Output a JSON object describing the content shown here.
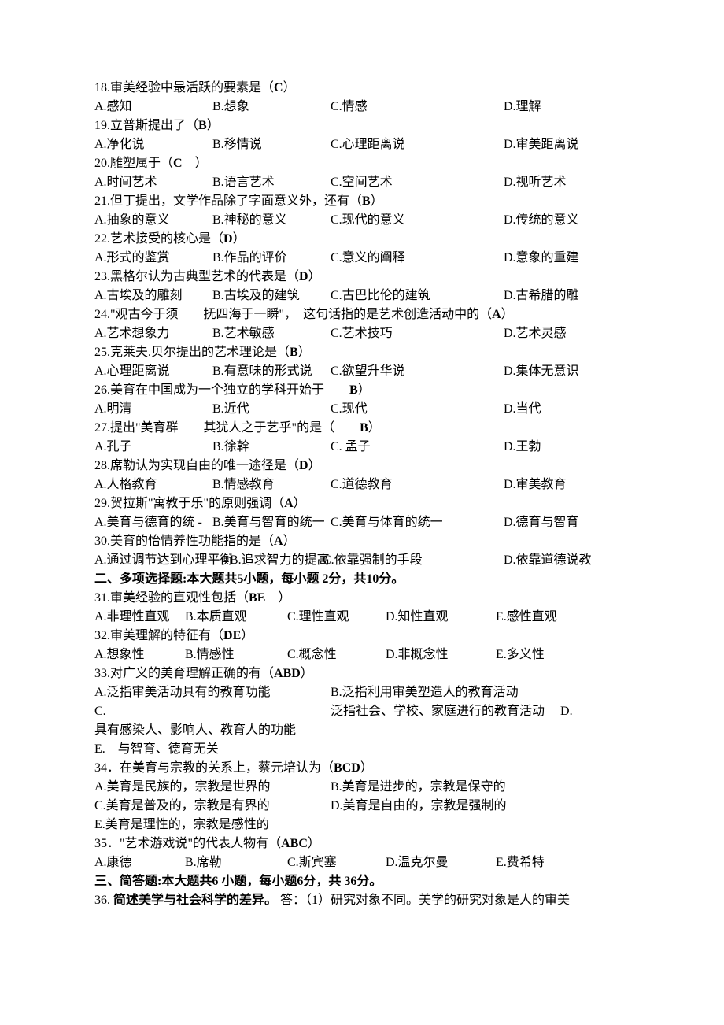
{
  "sc_questions": [
    {
      "num": "18",
      "stem": "审美经验中最活跃的要素是（",
      "ans": "C",
      "post": "）",
      "opts": [
        "A.感知",
        "B.想象",
        "C.情感",
        "D.理解"
      ],
      "cols": [
        0,
        150,
        300,
        520
      ]
    },
    {
      "num": "19",
      "stem": "立普斯提出了（",
      "ans": "B",
      "post": "）",
      "opts": [
        "A.净化说",
        "B.移情说",
        "C.心理距离说",
        "D.审美距离说"
      ],
      "cols": [
        0,
        150,
        300,
        520
      ]
    },
    {
      "num": "20",
      "stem": "雕塑属于（",
      "ans": "C",
      "post": "　）",
      "opts": [
        "A.时间艺术",
        "B.语言艺术",
        "C.空间艺术",
        "D.视听艺术"
      ],
      "cols": [
        0,
        150,
        300,
        520
      ]
    },
    {
      "num": "21",
      "stem": "但丁提出，文学作品除了字面意义外，还有（",
      "ans": "B",
      "post": "）",
      "opts": [
        "A.抽象的意义",
        "B.神秘的意义",
        "C.现代的意义",
        "D.传统的意义"
      ],
      "cols": [
        0,
        150,
        300,
        520
      ]
    },
    {
      "num": "22",
      "stem": "艺术接受的核心是（",
      "ans": "D",
      "post": "）",
      "opts": [
        "A.形式的鉴赏",
        "B.作品的评价",
        "C.意义的阐释",
        "D.意象的重建"
      ],
      "cols": [
        0,
        150,
        300,
        520
      ]
    },
    {
      "num": "23",
      "stem": "黑格尔认为古典型艺术的代表是（",
      "ans": "D",
      "post": "）",
      "opts": [
        "A.古埃及的雕刻",
        "B.古埃及的建筑",
        "C.古巴比伦的建筑",
        "D.古希腊的雕"
      ],
      "cols": [
        0,
        150,
        300,
        520
      ]
    },
    {
      "num": "24",
      "stem": "\"观古今于须　　抚四海于一瞬\"，　这句话指的是艺术创造活动中的（",
      "ans": "A",
      "post": "）",
      "opts": [
        "A.艺术想象力",
        "B.艺术敏感",
        "C.艺术技巧",
        "D.艺术灵感"
      ],
      "cols": [
        0,
        150,
        300,
        520
      ]
    },
    {
      "num": "25",
      "stem": "克莱夫.贝尔提出的艺术理论是（",
      "ans": "B",
      "post": "）",
      "opts": [
        "A.心理距离说",
        "B.有意味的形式说",
        "C.欲望升华说",
        "D.集体无意识"
      ],
      "cols": [
        0,
        150,
        300,
        520
      ]
    },
    {
      "num": "26",
      "stem": "美育在中国成为一个独立的学科开始于　　",
      "ans": "B",
      "post": "）",
      "opts": [
        "A.明清",
        "B.近代",
        "C.现代",
        "D.当代"
      ],
      "cols": [
        0,
        150,
        300,
        520
      ]
    },
    {
      "num": "27",
      "stem": "提出\"美育群　　其犹人之于艺乎\"的是（　　",
      "ans": "B",
      "post": "）",
      "opts": [
        "A.孔子",
        "B.徐幹",
        "C. 孟子",
        "D.王勃"
      ],
      "cols": [
        0,
        150,
        300,
        520
      ]
    },
    {
      "num": "28",
      "stem": "席勒认为实现自由的唯一途径是（",
      "ans": "D",
      "post": "）",
      "opts": [
        "A.人格教育",
        "B.情感教育",
        "C.道德教育",
        "D.审美教育"
      ],
      "cols": [
        0,
        150,
        300,
        520
      ]
    },
    {
      "num": "29",
      "stem": "贺拉斯\"寓教于乐\"的原则强调（",
      "ans": "A",
      "post": "）",
      "opts": [
        "A.美育与德育的统 -",
        "B.美育与智育的统一",
        "C.美育与体育的统一",
        "D.德育与智育"
      ],
      "cols": [
        0,
        150,
        300,
        520
      ]
    },
    {
      "num": "30",
      "stem": "美育的怡情养性功能指的是（",
      "ans": "A",
      "post": "）",
      "opts": [
        "A.通过调节达到心理平衡",
        "B.追求智力的提高",
        "C.依靠强制的手段",
        "D.依靠道德说教"
      ],
      "cols": [
        0,
        172,
        290,
        520
      ]
    }
  ],
  "mc_title": "二、多项选择题:本大题共5小题，每小题 2分，共10分。",
  "mc_questions": [
    {
      "num": "31",
      "stem": "审美经验的直观性包括（",
      "ans": "BE",
      "post": "　）",
      "opts": [
        "A.非理性直观",
        "B.本质直观",
        "C.理性直观",
        "D.知性直观",
        "E.感性直观"
      ],
      "cols": [
        0,
        115,
        245,
        370,
        510
      ]
    },
    {
      "num": "32",
      "stem": "审美理解的特征有（",
      "ans": "DE",
      "post": "）",
      "opts": [
        "A.想象性",
        "B.情感性",
        "C.概念性",
        "D.非概念性",
        "E.多义性"
      ],
      "cols": [
        0,
        115,
        245,
        370,
        510
      ]
    }
  ],
  "q33": {
    "num": "33",
    "stem": "对广义的美育理解正确的有（",
    "ans": "ABD",
    "post": "）",
    "lineA": "A.泛指审美活动具有的教育功能",
    "lineB": "B.泛指利用审美塑造人的教育活动",
    "lineC_letter": "C.",
    "lineC_text": "泛指社会、学校、家庭进行的教育活动",
    "lineD_letter": "D.",
    "lineD_text": "具有感染人、影响人、教育人的功能",
    "lineE": "E.　与智育、德育无关"
  },
  "q34": {
    "num": "34．",
    "stem": "在美育与宗教的关系上，蔡元培认为（",
    "ans": "BCD",
    "post": "）",
    "rows": [
      [
        "A.美育是民族的，宗教是世界的",
        "B.美育是进步的，宗教是保守的"
      ],
      [
        "C.美育是普及的，宗教是有界的",
        "D.美育是自由的，宗教是强制的"
      ]
    ],
    "rowE": "E.美育是理性的，宗教是感性的"
  },
  "q35": {
    "num": "35．",
    "stem": "\"艺术游戏说\"的代表人物有（",
    "ans": "ABC",
    "post": "）",
    "opts": [
      "A.康德",
      "B.席勒",
      "C.斯宾塞",
      "D.温克尔曼",
      "E.费希特"
    ],
    "cols": [
      0,
      115,
      245,
      370,
      510
    ]
  },
  "sa_title": "三、简答题:本大题共6 小题，每小题6分，共 36分。",
  "q36": {
    "num": "36.",
    "title": "简述美学与社会科学的差异。",
    "ans_label": "答：",
    "ans_text": "（1）研究对象不同。美学的研究对象是人的审美"
  },
  "layout": {
    "col_a": 0,
    "col_b": 150,
    "col_c": 300,
    "col_d": 520
  }
}
